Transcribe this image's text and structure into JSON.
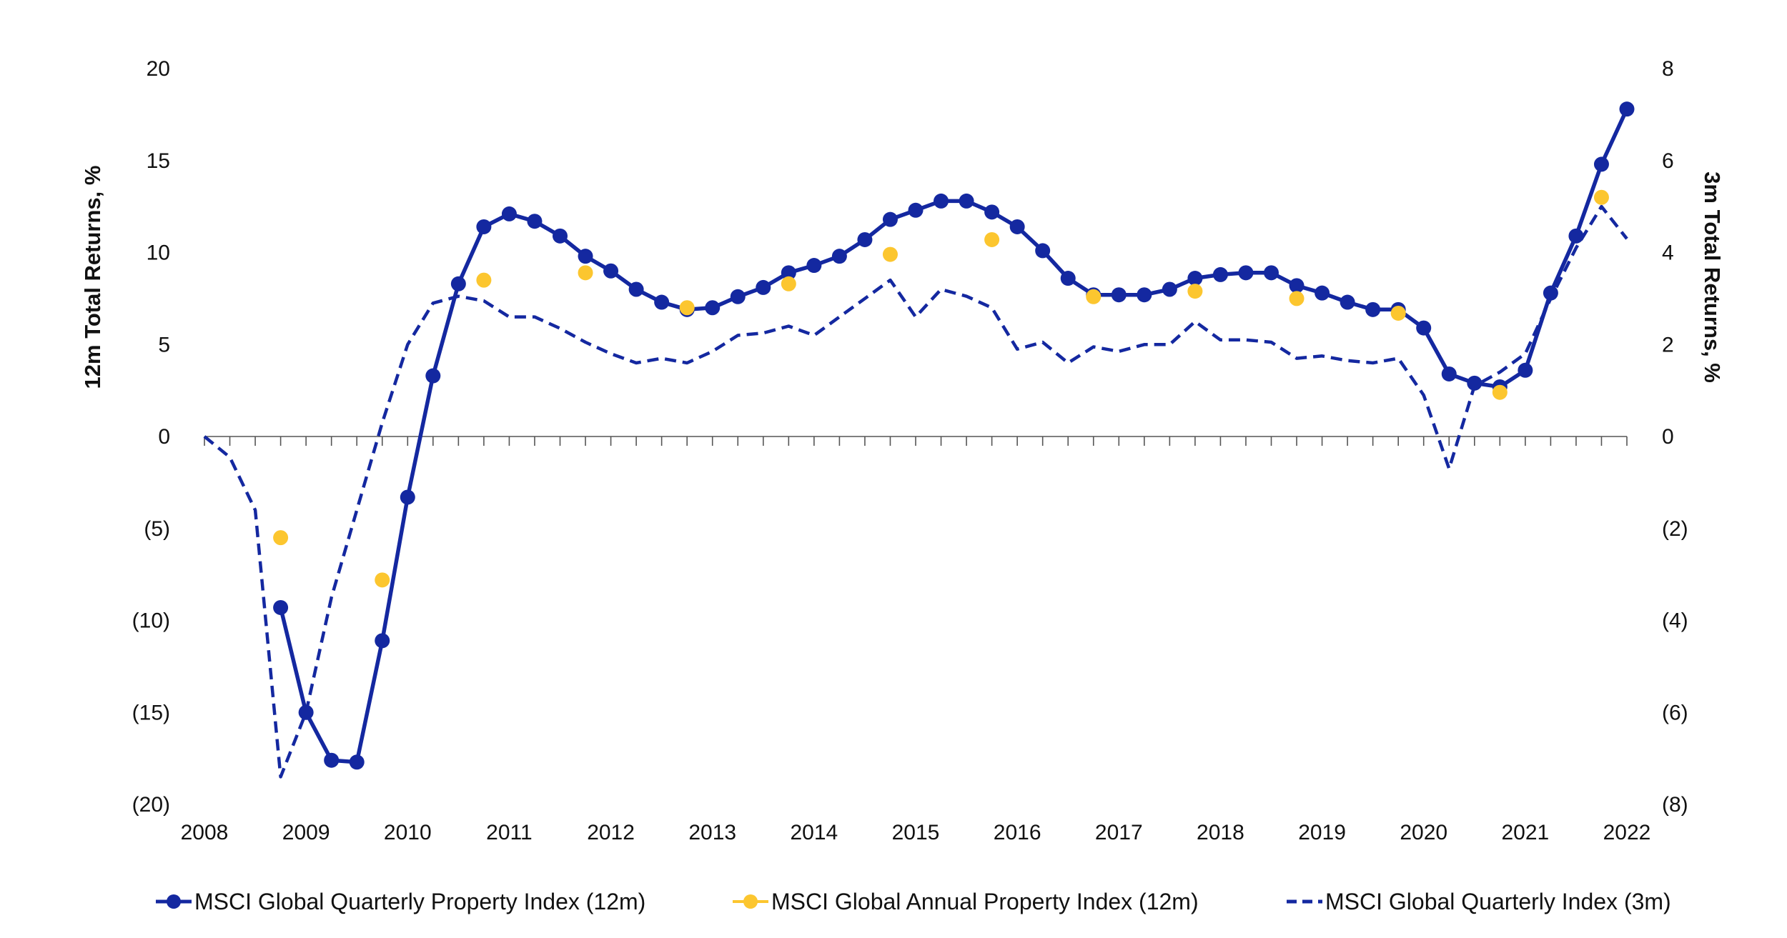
{
  "chart_data": {
    "type": "line",
    "title": "",
    "xlabel": "",
    "ylabel": "12m Total Returns, %",
    "y2label": "3m Total Returns, %",
    "ylim": [
      -20,
      20
    ],
    "y2lim": [
      -8,
      8
    ],
    "yticks": [
      {
        "value": 20,
        "label": "20"
      },
      {
        "value": 15,
        "label": "15"
      },
      {
        "value": 10,
        "label": "10"
      },
      {
        "value": 5,
        "label": "5"
      },
      {
        "value": 0,
        "label": "0"
      },
      {
        "value": -5,
        "label": "(5)"
      },
      {
        "value": -10,
        "label": "(10)"
      },
      {
        "value": -15,
        "label": "(15)"
      },
      {
        "value": -20,
        "label": "(20)"
      }
    ],
    "y2ticks": [
      {
        "value": 8,
        "label": "8"
      },
      {
        "value": 6,
        "label": "6"
      },
      {
        "value": 4,
        "label": "4"
      },
      {
        "value": 2,
        "label": "2"
      },
      {
        "value": 0,
        "label": "0"
      },
      {
        "value": -2,
        "label": "(2)"
      },
      {
        "value": -4,
        "label": "(4)"
      },
      {
        "value": -6,
        "label": "(6)"
      },
      {
        "value": -8,
        "label": "(8)"
      }
    ],
    "xticks": [
      "2008",
      "2009",
      "2010",
      "2011",
      "2012",
      "2013",
      "2014",
      "2015",
      "2016",
      "2017",
      "2018",
      "2019",
      "2020",
      "2021",
      "2022"
    ],
    "xlim": [
      2008,
      2022
    ],
    "grid": false,
    "legend_position": "bottom",
    "series": [
      {
        "name": "MSCI Global Quarterly Property Index (12m)",
        "axis": "left",
        "style": "line-markers",
        "color": "#1428a0",
        "x": [
          2008.75,
          2009.0,
          2009.25,
          2009.5,
          2009.75,
          2010.0,
          2010.25,
          2010.5,
          2010.75,
          2011.0,
          2011.25,
          2011.5,
          2011.75,
          2012.0,
          2012.25,
          2012.5,
          2012.75,
          2013.0,
          2013.25,
          2013.5,
          2013.75,
          2014.0,
          2014.25,
          2014.5,
          2014.75,
          2015.0,
          2015.25,
          2015.5,
          2015.75,
          2016.0,
          2016.25,
          2016.5,
          2016.75,
          2017.0,
          2017.25,
          2017.5,
          2017.75,
          2018.0,
          2018.25,
          2018.5,
          2018.75,
          2019.0,
          2019.25,
          2019.5,
          2019.75,
          2020.0,
          2020.25,
          2020.5,
          2020.75,
          2021.0,
          2021.25,
          2021.5,
          2021.75,
          2022.0
        ],
        "values": [
          -9.3,
          -15.0,
          -17.6,
          -17.7,
          -11.1,
          -3.3,
          3.3,
          8.3,
          11.4,
          12.1,
          11.7,
          10.9,
          9.8,
          9.0,
          8.0,
          7.3,
          6.9,
          7.0,
          7.6,
          8.1,
          8.9,
          9.3,
          9.8,
          10.7,
          11.8,
          12.3,
          12.8,
          12.8,
          12.2,
          11.4,
          10.1,
          8.6,
          7.7,
          7.7,
          7.7,
          8.0,
          8.6,
          8.8,
          8.9,
          8.9,
          8.2,
          7.8,
          7.3,
          6.9,
          6.9,
          5.9,
          3.4,
          2.9,
          2.7,
          3.6,
          7.8,
          10.9,
          14.8,
          17.8
        ]
      },
      {
        "name": "MSCI Global Annual Property Index (12m)",
        "axis": "left",
        "style": "markers",
        "color": "#fcc62f",
        "x": [
          2008.75,
          2009.75,
          2010.75,
          2011.75,
          2012.75,
          2013.75,
          2014.75,
          2015.75,
          2016.75,
          2017.75,
          2018.75,
          2019.75,
          2020.75,
          2021.75
        ],
        "values": [
          -5.5,
          -7.8,
          8.5,
          8.9,
          7.0,
          8.3,
          9.9,
          10.7,
          7.6,
          7.9,
          7.5,
          6.7,
          2.4,
          13.0
        ]
      },
      {
        "name": "MSCI Global Quarterly Index (3m)",
        "axis": "right",
        "style": "dashed",
        "color": "#1428a0",
        "x": [
          2008.0,
          2008.25,
          2008.5,
          2008.75,
          2009.0,
          2009.25,
          2009.5,
          2009.75,
          2010.0,
          2010.25,
          2010.5,
          2010.75,
          2011.0,
          2011.25,
          2011.5,
          2011.75,
          2012.0,
          2012.25,
          2012.5,
          2012.75,
          2013.0,
          2013.25,
          2013.5,
          2013.75,
          2014.0,
          2014.25,
          2014.5,
          2014.75,
          2015.0,
          2015.25,
          2015.5,
          2015.75,
          2016.0,
          2016.25,
          2016.5,
          2016.75,
          2017.0,
          2017.25,
          2017.5,
          2017.75,
          2018.0,
          2018.25,
          2018.5,
          2018.75,
          2019.0,
          2019.25,
          2019.5,
          2019.75,
          2020.0,
          2020.25,
          2020.5,
          2020.75,
          2021.0,
          2021.25,
          2021.5,
          2021.75,
          2022.0
        ],
        "values": [
          0.0,
          -0.45,
          -1.6,
          -7.4,
          -6.0,
          -3.5,
          -1.6,
          0.3,
          2.0,
          2.9,
          3.05,
          2.95,
          2.6,
          2.6,
          2.35,
          2.05,
          1.8,
          1.6,
          1.7,
          1.6,
          1.85,
          2.2,
          2.25,
          2.4,
          2.2,
          2.6,
          3.0,
          3.4,
          2.6,
          3.2,
          3.05,
          2.8,
          1.9,
          2.05,
          1.6,
          1.95,
          1.85,
          2.0,
          2.0,
          2.5,
          2.1,
          2.1,
          2.05,
          1.7,
          1.75,
          1.65,
          1.6,
          1.7,
          0.9,
          -0.7,
          1.1,
          1.4,
          1.8,
          3.0,
          4.1,
          5.0,
          4.3
        ]
      }
    ]
  }
}
